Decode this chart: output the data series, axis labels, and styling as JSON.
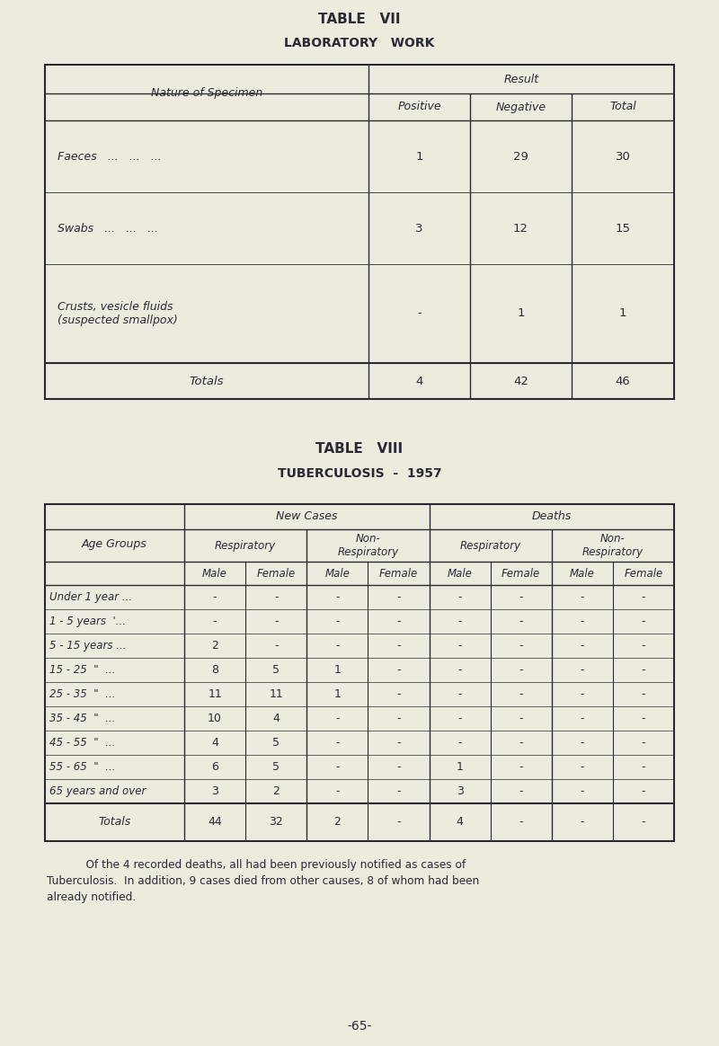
{
  "bg_color": "#edeade",
  "text_color": "#2a2a35",
  "title1": "TABLE   VII",
  "subtitle1": "LABORATORY   WORK",
  "title2": "TABLE   VIII",
  "subtitle2": "TUBERCULOSIS  -  1957",
  "footer": "-65-",
  "note_line1": "    Of the 4 recorded deaths, all had been previously notified as cases of",
  "note_line2": "Tuberculosis.  In addition, 9 cases died from other causes, 8 of whom had been",
  "note_line3": "already notified.",
  "table1": {
    "rows": [
      [
        "Faeces   ...   ...   ...",
        "1",
        "29",
        "30"
      ],
      [
        "Swabs   ...   ...   ...",
        "3",
        "12",
        "15"
      ],
      [
        "Crusts, vesicle fluids\n(suspected smallpox)",
        "-",
        "1",
        "1"
      ]
    ],
    "totals": [
      "Totals",
      "4",
      "42",
      "46"
    ]
  },
  "table2": {
    "rows": [
      [
        "Under 1 year ...",
        "-",
        "-",
        "-",
        "-",
        "-",
        "-",
        "-",
        "-"
      ],
      [
        "1 - 5 years  '...",
        "-",
        "-",
        "-",
        "-",
        "-",
        "-",
        "-",
        "-"
      ],
      [
        "5 - 15 years ...",
        "2",
        "-",
        "-",
        "-",
        "-",
        "-",
        "-",
        "-"
      ],
      [
        "15 - 25  \"  ...",
        "8",
        "5",
        "1",
        "-",
        "-",
        "-",
        "-",
        "-"
      ],
      [
        "25 - 35  \"  ...",
        "11",
        "11",
        "1",
        "-",
        "-",
        "-",
        "-",
        "-"
      ],
      [
        "35 - 45  \"  ...",
        "10",
        "4",
        "-",
        "-",
        "-",
        "-",
        "-",
        "-"
      ],
      [
        "45 - 55  \"  ...",
        "4",
        "5",
        "-",
        "-",
        "-",
        "-",
        "-",
        "-"
      ],
      [
        "55 - 65  \"  ...",
        "6",
        "5",
        "-",
        "-",
        "1",
        "-",
        "-",
        "-"
      ],
      [
        "65 years and over",
        "3",
        "2",
        "-",
        "-",
        "3",
        "-",
        "-",
        "-"
      ]
    ],
    "totals": [
      "Totals",
      "44",
      "32",
      "2",
      "-",
      "4",
      "-",
      "-",
      "-"
    ]
  }
}
